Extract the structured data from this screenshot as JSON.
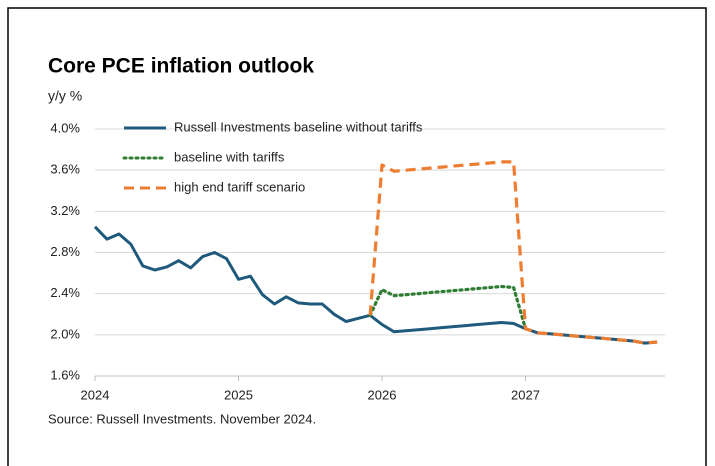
{
  "chart_data": {
    "type": "line",
    "title": "Core PCE inflation outlook",
    "y_axis_label": "y/y %",
    "source": "Source: Russell Investments. November 2024.",
    "x": [
      2024,
      2024.083,
      2024.167,
      2024.25,
      2024.333,
      2024.417,
      2024.5,
      2024.583,
      2024.667,
      2024.75,
      2024.833,
      2024.917,
      2025,
      2025.083,
      2025.167,
      2025.25,
      2025.333,
      2025.417,
      2025.5,
      2025.583,
      2025.667,
      2025.75,
      2025.833,
      2025.917,
      2026,
      2026.083,
      2026.167,
      2026.25,
      2026.333,
      2026.417,
      2026.5,
      2026.583,
      2026.667,
      2026.75,
      2026.833,
      2026.917,
      2027,
      2027.083,
      2027.167,
      2027.25,
      2027.333,
      2027.417,
      2027.5,
      2027.583,
      2027.667,
      2027.75,
      2027.833,
      2027.917
    ],
    "series": [
      {
        "name": "Russell Investments baseline without tariffs",
        "color": "#1f5a7c",
        "dash": "solid",
        "values": [
          3.05,
          2.93,
          2.98,
          2.88,
          2.67,
          2.63,
          2.66,
          2.72,
          2.65,
          2.76,
          2.8,
          2.74,
          2.54,
          2.57,
          2.39,
          2.3,
          2.37,
          2.31,
          2.3,
          2.3,
          2.2,
          2.13,
          2.16,
          2.19,
          2.1,
          2.03,
          2.04,
          2.05,
          2.06,
          2.07,
          2.08,
          2.09,
          2.1,
          2.11,
          2.12,
          2.11,
          2.06,
          2.02,
          2.01,
          2.0,
          1.99,
          1.98,
          1.97,
          1.96,
          1.95,
          1.94,
          1.92,
          1.93
        ]
      },
      {
        "name": "baseline with tariffs",
        "color": "#2e7d32",
        "dash": "dotted",
        "values": [
          null,
          null,
          null,
          null,
          null,
          null,
          null,
          null,
          null,
          null,
          null,
          null,
          null,
          null,
          null,
          null,
          null,
          null,
          null,
          null,
          null,
          null,
          null,
          2.19,
          2.44,
          2.38,
          2.39,
          2.4,
          2.41,
          2.42,
          2.43,
          2.44,
          2.45,
          2.46,
          2.47,
          2.46,
          2.06,
          null,
          null,
          null,
          null,
          null,
          null,
          null,
          null,
          null,
          null,
          null
        ]
      },
      {
        "name": "high end tariff scenario",
        "color": "#ed7d31",
        "dash": "dashed",
        "values": [
          null,
          null,
          null,
          null,
          null,
          null,
          null,
          null,
          null,
          null,
          null,
          null,
          null,
          null,
          null,
          null,
          null,
          null,
          null,
          null,
          null,
          null,
          null,
          2.19,
          3.65,
          3.59,
          3.6,
          3.61,
          3.62,
          3.63,
          3.64,
          3.65,
          3.66,
          3.67,
          3.68,
          3.68,
          2.06,
          2.02,
          2.01,
          2.0,
          1.99,
          1.98,
          1.97,
          1.96,
          1.95,
          1.94,
          1.92,
          1.93
        ]
      }
    ],
    "xlim": [
      2024,
      2028
    ],
    "xticks": [
      2024,
      2025,
      2026,
      2027
    ],
    "ylim": [
      1.6,
      4.0
    ],
    "yticks": [
      {
        "value": 1.6,
        "label": "1.6%"
      },
      {
        "value": 2.0,
        "label": "2.0%"
      },
      {
        "value": 2.4,
        "label": "2.4%"
      },
      {
        "value": 2.8,
        "label": "2.8%"
      },
      {
        "value": 3.2,
        "label": "3.2%"
      },
      {
        "value": 3.6,
        "label": "3.6%"
      },
      {
        "value": 4.0,
        "label": "4.0%"
      }
    ],
    "grid": true,
    "legend": "top-left"
  }
}
